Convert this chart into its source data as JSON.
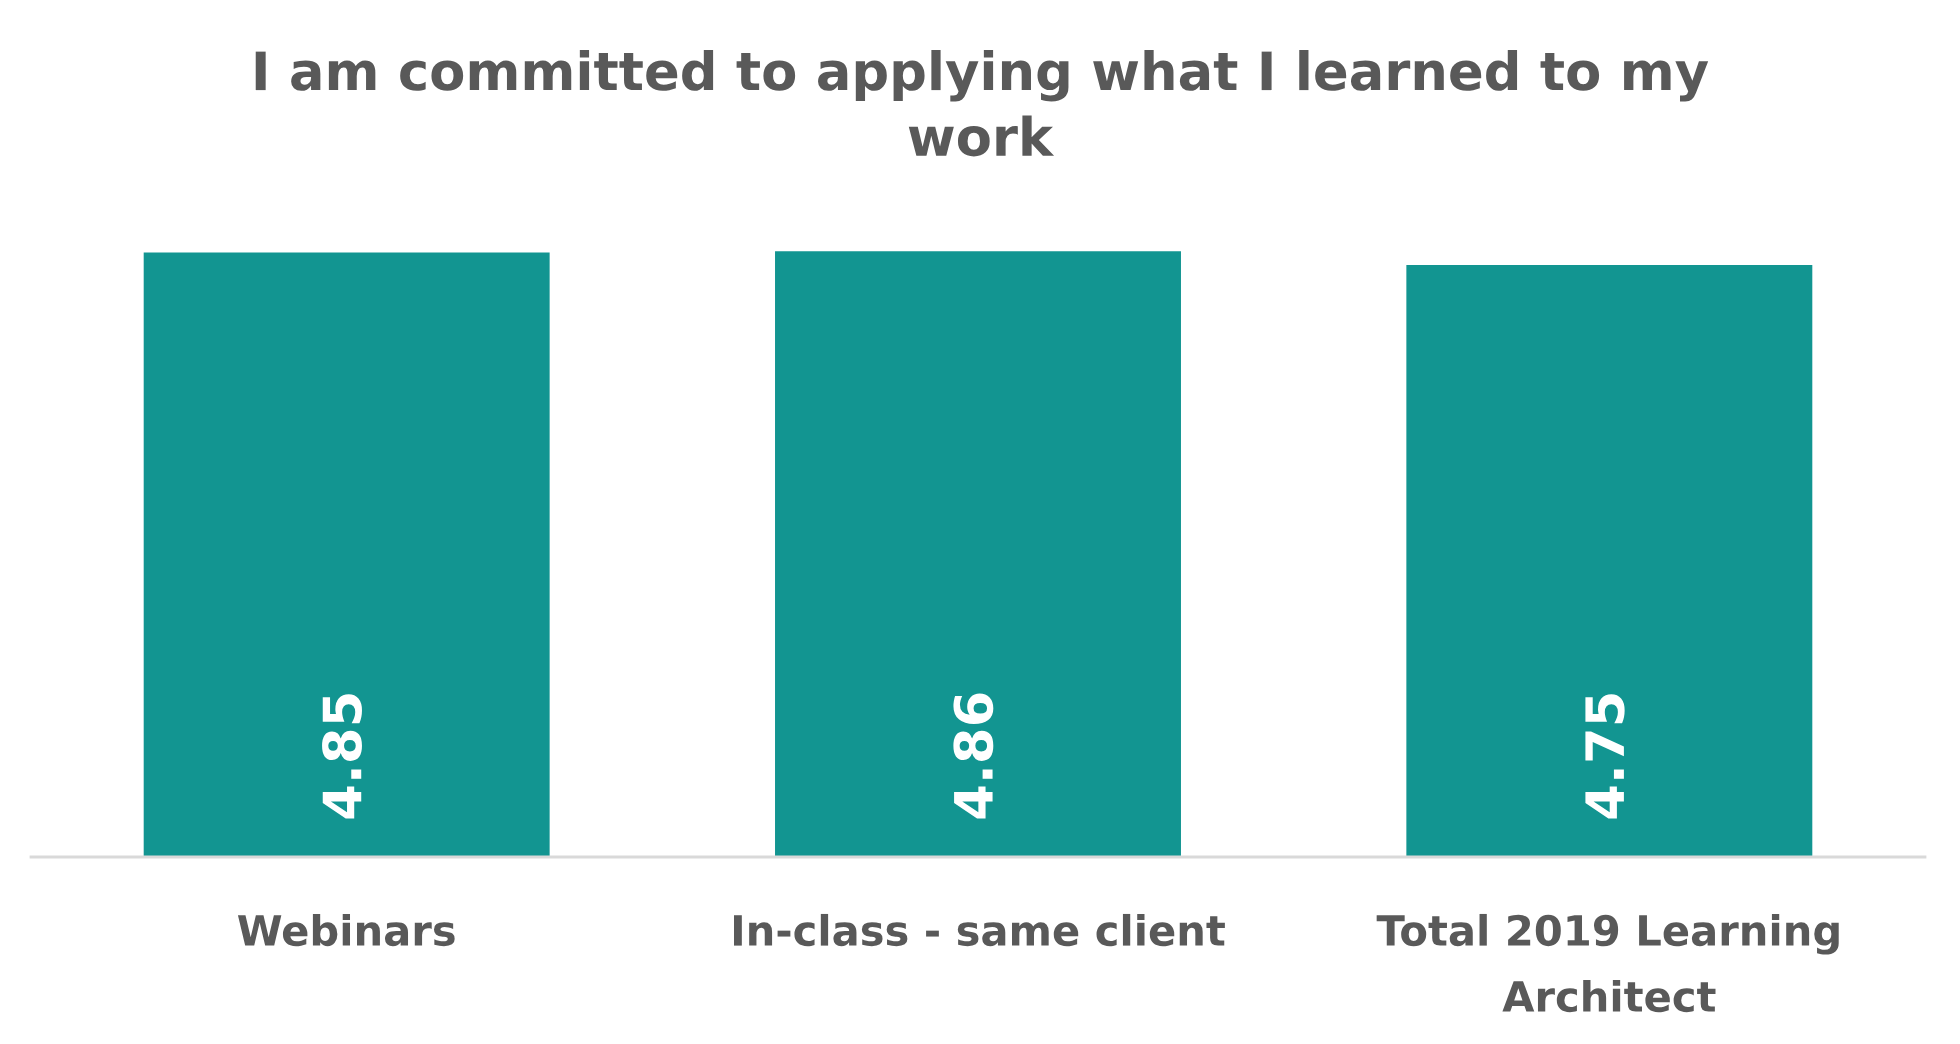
{
  "chart_data": {
    "type": "bar",
    "title": "I am committed to applying what I learned to my work",
    "categories": [
      "Webinars",
      "In-class - same client",
      "Total 2019 Learning Architect"
    ],
    "values": [
      4.85,
      4.86,
      4.75
    ],
    "color": "#129591",
    "data_labels": true
  }
}
